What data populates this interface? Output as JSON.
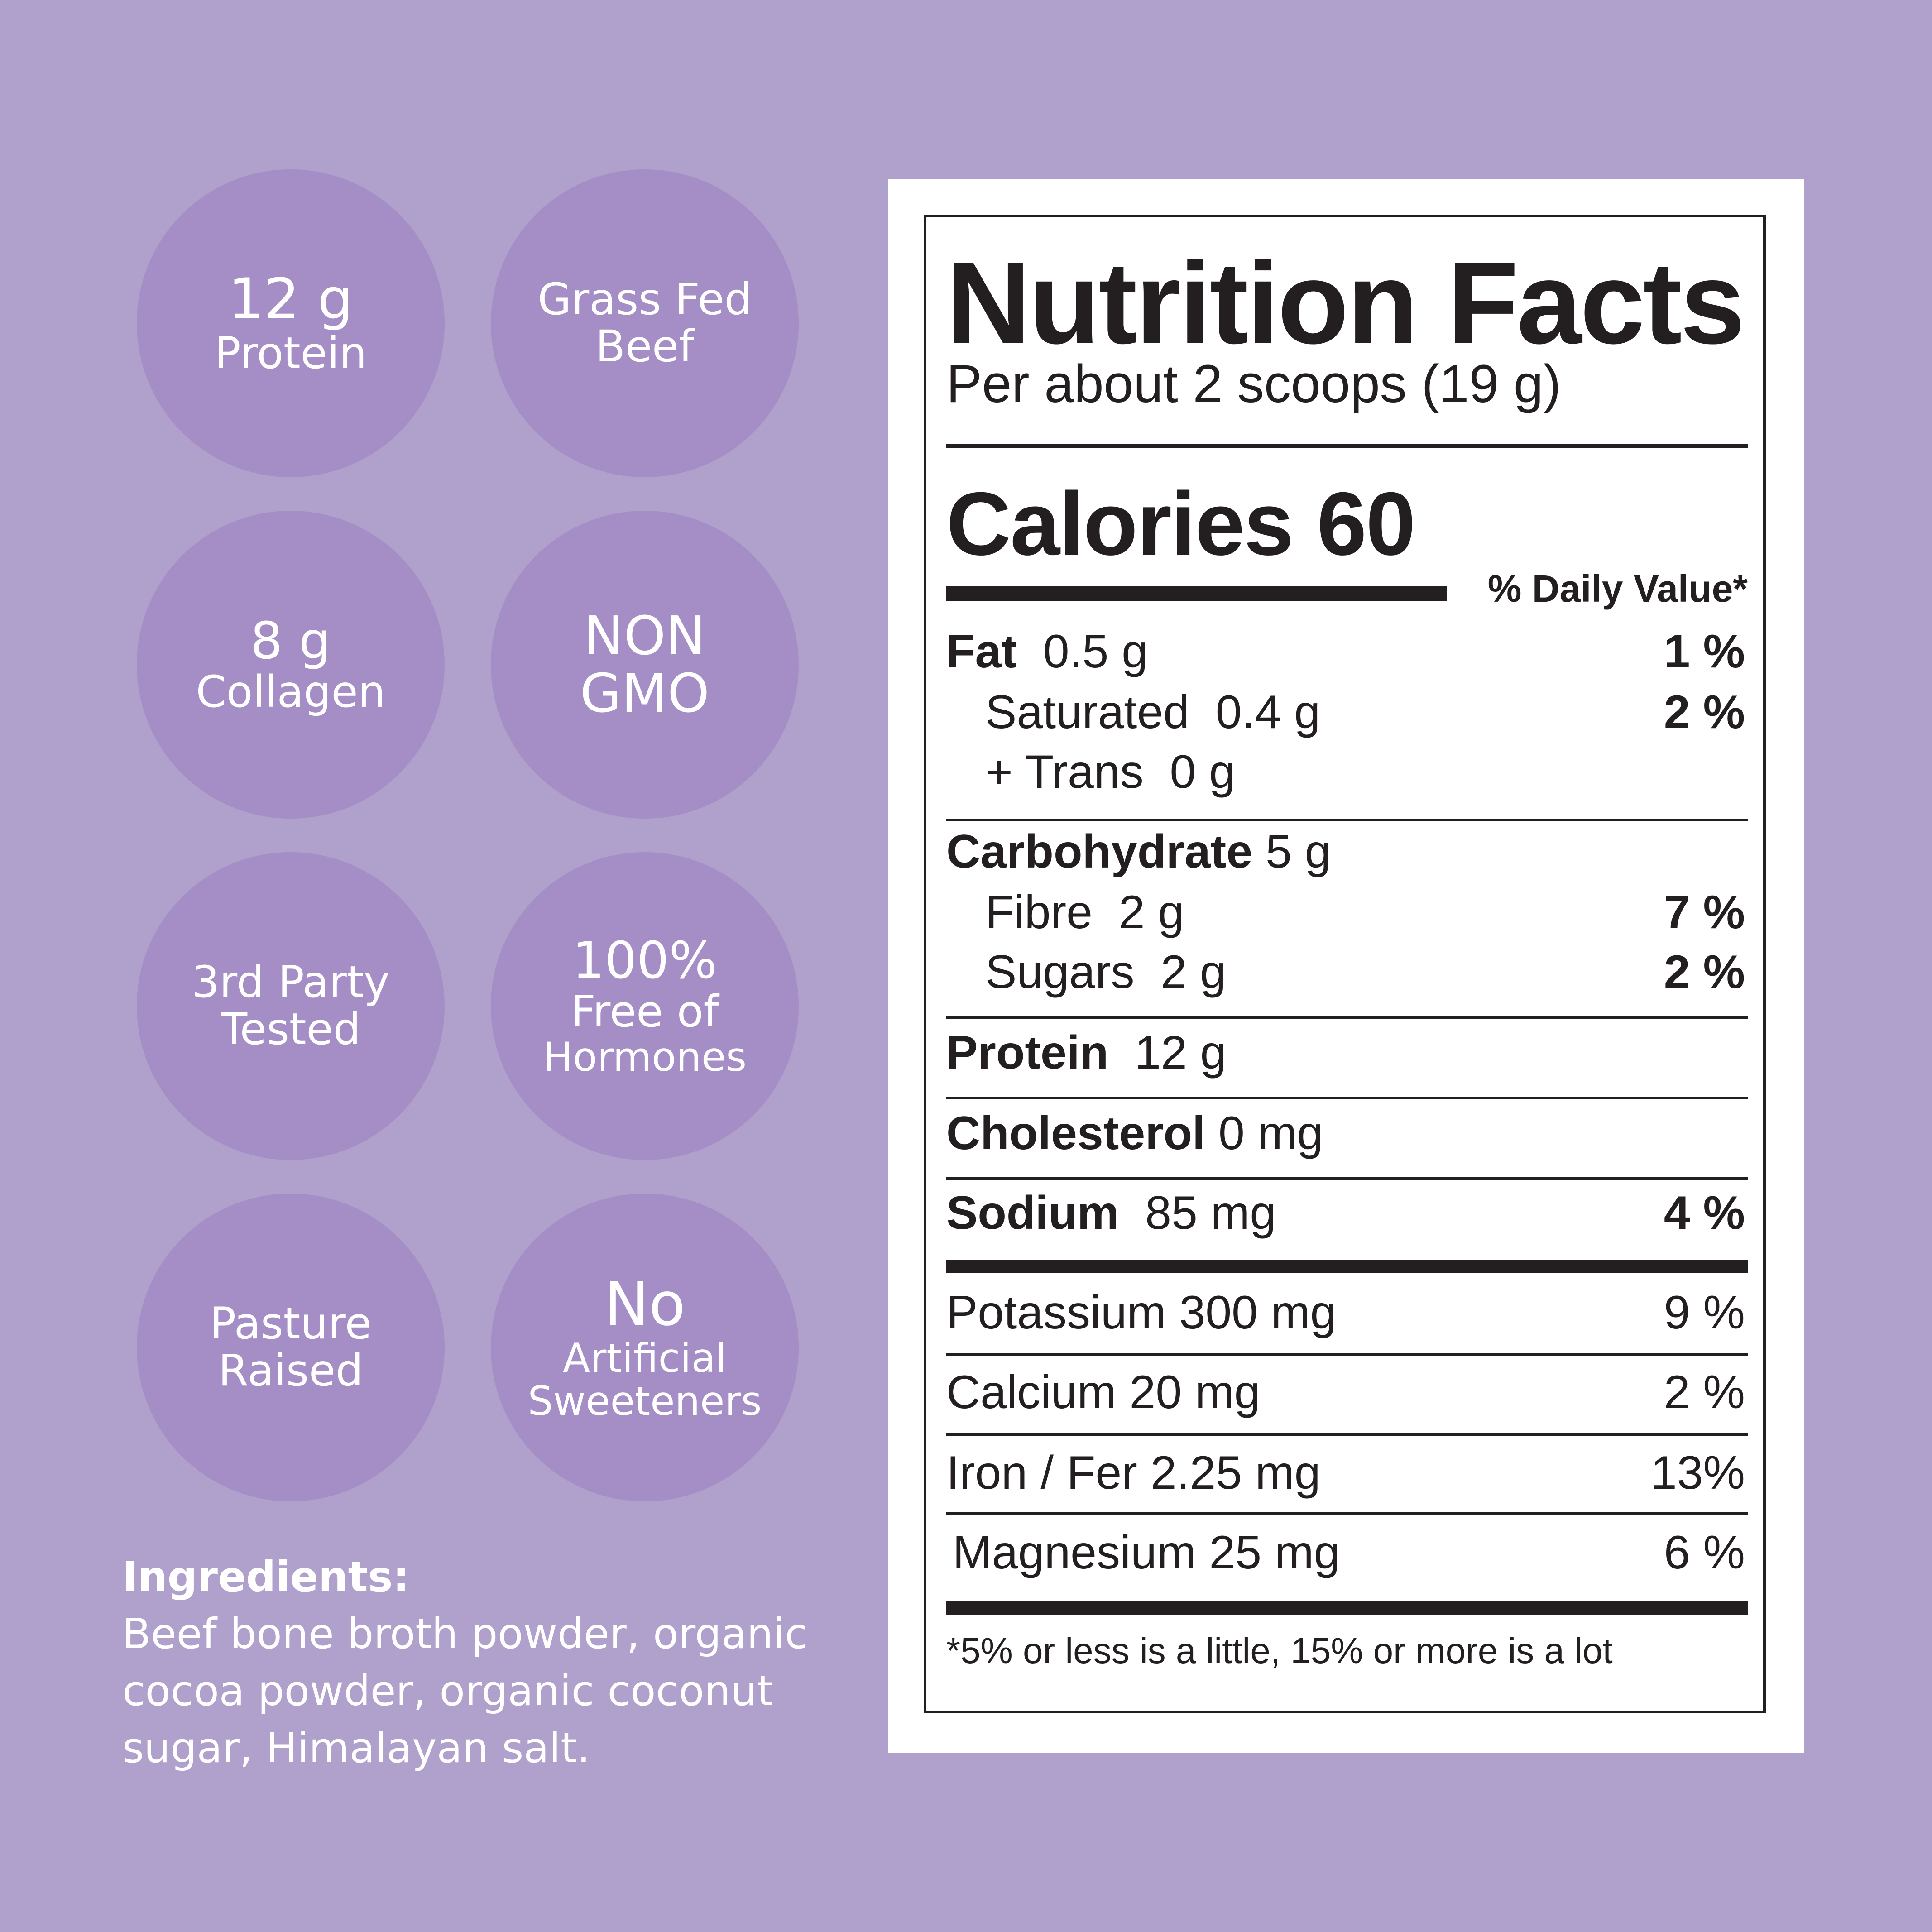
{
  "badges": [
    {
      "line1": "12 g",
      "line2": "Protein"
    },
    {
      "line1": "Grass Fed",
      "line2": "Beef"
    },
    {
      "line1": "8 g",
      "line2": "Collagen"
    },
    {
      "line1": "NON",
      "line2": "GMO"
    },
    {
      "line1": "3rd Party",
      "line2": "Tested"
    },
    {
      "line1": "100%",
      "line2": "Free of",
      "line3": "Hormones"
    },
    {
      "line1": "Pasture",
      "line2": "Raised"
    },
    {
      "line1": "No",
      "line2": "Artificial",
      "line3": "Sweeteners"
    }
  ],
  "ingredients": {
    "heading": "Ingredients:",
    "lines": [
      "Beef bone broth powder, organic",
      "cocoa powder, organic coconut",
      "sugar, Himalayan salt."
    ]
  },
  "nutrition": {
    "title": "Nutrition Facts",
    "serving": "Per about 2 scoops (19 g)",
    "calories": "Calories 60",
    "dv_heading": "% Daily Value*",
    "rows": {
      "fat": {
        "name": "Fat",
        "amount": "0.5 g",
        "pct": "1 %"
      },
      "saturated": {
        "name": "Saturated",
        "amount": "0.4 g",
        "pct": "2 %"
      },
      "trans": {
        "name": "+ Trans",
        "amount": "0 g"
      },
      "carbohydrate": {
        "name": "Carbohydrate",
        "amount": "5 g"
      },
      "fibre": {
        "name": "Fibre",
        "amount": "2 g",
        "pct": "7 %"
      },
      "sugars": {
        "name": "Sugars",
        "amount": "2 g",
        "pct": "2 %"
      },
      "protein": {
        "name": "Protein",
        "amount": "12 g"
      },
      "cholesterol": {
        "name": "Cholesterol",
        "amount": "0 mg"
      },
      "sodium": {
        "name": "Sodium",
        "amount": "85 mg",
        "pct": "4 %"
      },
      "potassium": {
        "name": "Potassium 300 mg",
        "pct": "9 %"
      },
      "calcium": {
        "name": "Calcium 20 mg",
        "pct": "2 %"
      },
      "iron": {
        "name": "Iron / Fer 2.25 mg",
        "pct": "13%"
      },
      "magnesium": {
        "name": "Magnesium 25 mg",
        "pct": "6 %"
      }
    },
    "footnote": "*5% or less is a little, 15% or more is a lot"
  },
  "colors": {
    "background": "#b0a0cc",
    "badge": "#a48ec5",
    "ink": "#231f20"
  }
}
